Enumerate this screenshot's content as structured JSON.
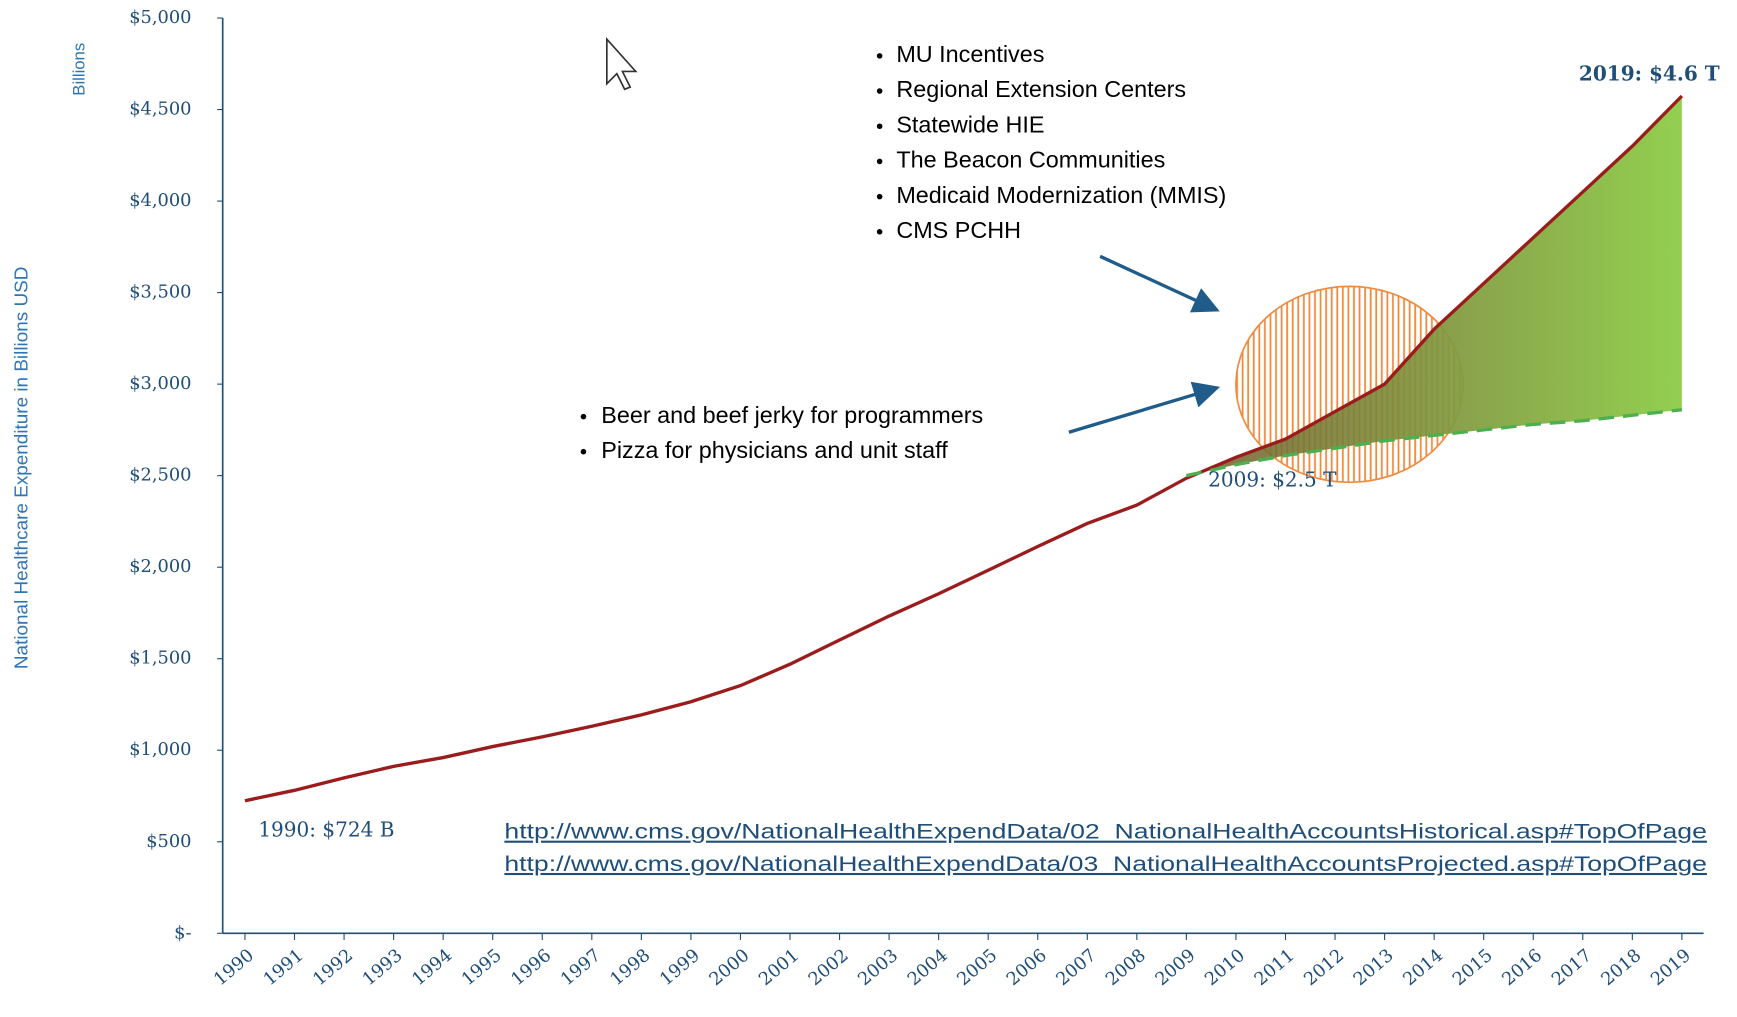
{
  "chart_data": {
    "type": "line",
    "y_label": "National Healthcare Expenditure in Billions  USD",
    "y_unit": "Billions",
    "categories": [
      "1990",
      "1991",
      "1992",
      "1993",
      "1994",
      "1995",
      "1996",
      "1997",
      "1998",
      "1999",
      "2000",
      "2001",
      "2002",
      "2003",
      "2004",
      "2005",
      "2006",
      "2007",
      "2008",
      "2009",
      "2010",
      "2011",
      "2012",
      "2013",
      "2014",
      "2015",
      "2016",
      "2017",
      "2018",
      "2019"
    ],
    "series": [
      {
        "color": "#9b1c1c",
        "values": [
          724,
          781,
          849,
          912,
          960,
          1020,
          1073,
          1131,
          1193,
          1265,
          1353,
          1470,
          1602,
          1733,
          1855,
          1983,
          2113,
          2239,
          2339,
          2486,
          2600,
          2700,
          2850,
          3000,
          3300,
          3550,
          3800,
          4050,
          4300,
          4574
        ]
      },
      {
        "color": "#4caf50",
        "dashed": true,
        "values": [
          null,
          null,
          null,
          null,
          null,
          null,
          null,
          null,
          null,
          null,
          null,
          null,
          null,
          null,
          null,
          null,
          null,
          null,
          null,
          2500,
          2560,
          2610,
          2650,
          2690,
          2720,
          2750,
          2780,
          2800,
          2830,
          2860
        ]
      }
    ],
    "ylim": [
      0,
      5000
    ],
    "yticks": [
      {
        "value": 0,
        "label": "$-"
      },
      {
        "value": 500,
        "label": "$500"
      },
      {
        "value": 1000,
        "label": "$1,000"
      },
      {
        "value": 1500,
        "label": "$1,500"
      },
      {
        "value": 2000,
        "label": "$2,000"
      },
      {
        "value": 2500,
        "label": "$2,500"
      },
      {
        "value": 3000,
        "label": "$3,000"
      },
      {
        "value": 3500,
        "label": "$3,500"
      },
      {
        "value": 4000,
        "label": "$4,000"
      },
      {
        "value": 4500,
        "label": "$4,500"
      },
      {
        "value": 5000,
        "label": "$5,000"
      }
    ],
    "point_labels": [
      "1990: $724 B",
      "2009: $2.5 T",
      "2019: $4.6 T"
    ],
    "bullets_top": [
      "MU Incentives",
      "Regional Extension Centers",
      "Statewide HIE",
      "The Beacon Communities",
      "Medicaid Modernization (MMIS)",
      "CMS PCHH"
    ],
    "bullets_bottom": [
      "Beer and beef jerky for programmers",
      "Pizza for physicians and unit staff"
    ],
    "links": [
      "http://www.cms.gov/NationalHealthExpendData/02_NationalHealthAccountsHistorical.asp#TopOfPage",
      "http://www.cms.gov/NationalHealthExpendData/03_NationalHealthAccountsProjected.asp#TopOfPage"
    ]
  }
}
